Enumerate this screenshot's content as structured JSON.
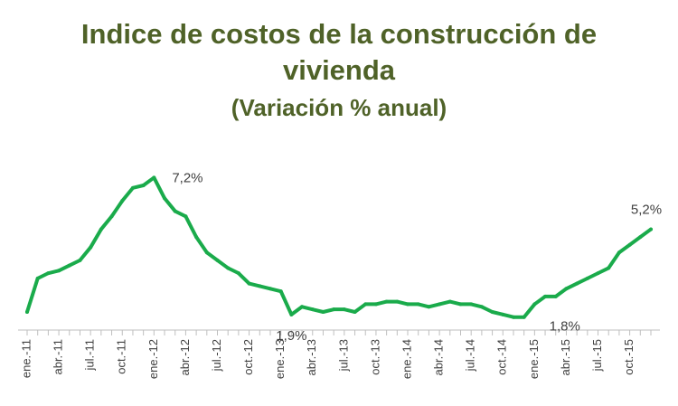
{
  "chart_data": {
    "type": "line",
    "title": "Indice de costos de la construcción de vivienda",
    "subtitle": "(Variación % anual)",
    "xlabel": "",
    "ylabel": "",
    "ylim": [
      1.3,
      7.6
    ],
    "grid": false,
    "colors": {
      "line": "#1aab4b",
      "axis": "#bfbfbf",
      "title": "#4f6228"
    },
    "x": [
      "ene.-11",
      "feb.-11",
      "mar.-11",
      "abr.-11",
      "may.-11",
      "jun.-11",
      "jul.-11",
      "ago.-11",
      "sep.-11",
      "oct.-11",
      "nov.-11",
      "dic.-11",
      "ene.-12",
      "feb.-12",
      "mar.-12",
      "abr.-12",
      "may.-12",
      "jun.-12",
      "jul.-12",
      "ago.-12",
      "sep.-12",
      "oct.-12",
      "nov.-12",
      "dic.-12",
      "ene.-13",
      "feb.-13",
      "mar.-13",
      "abr.-13",
      "may.-13",
      "jun.-13",
      "jul.-13",
      "ago.-13",
      "sep.-13",
      "oct.-13",
      "nov.-13",
      "dic.-13",
      "ene.-14",
      "feb.-14",
      "mar.-14",
      "abr.-14",
      "may.-14",
      "jun.-14",
      "jul.-14",
      "ago.-14",
      "sep.-14",
      "oct.-14",
      "nov.-14",
      "dic.-14",
      "ene.-15",
      "feb.-15",
      "mar.-15",
      "abr.-15",
      "may.-15",
      "jun.-15",
      "jul.-15",
      "ago.-15",
      "sep.-15",
      "oct.-15",
      "nov.-15",
      "dic.-15"
    ],
    "tick_labels": [
      "ene.-11",
      "abr.-11",
      "jul.-11",
      "oct.-11",
      "ene.-12",
      "abr.-12",
      "jul.-12",
      "oct.-12",
      "ene.-13",
      "abr.-13",
      "jul.-13",
      "oct.-13",
      "ene.-14",
      "abr.-14",
      "jul.-14",
      "oct.-14",
      "ene.-15",
      "abr.-15",
      "jul.-15",
      "oct.-15"
    ],
    "series": [
      {
        "values": [
          2.0,
          3.3,
          3.5,
          3.6,
          3.8,
          4.0,
          4.5,
          5.2,
          5.7,
          6.3,
          6.8,
          6.9,
          7.2,
          6.4,
          5.9,
          5.7,
          4.9,
          4.3,
          4.0,
          3.7,
          3.5,
          3.1,
          3.0,
          2.9,
          2.8,
          1.9,
          2.2,
          2.1,
          2.0,
          2.1,
          2.1,
          2.0,
          2.3,
          2.3,
          2.4,
          2.4,
          2.3,
          2.3,
          2.2,
          2.3,
          2.4,
          2.3,
          2.3,
          2.2,
          2.0,
          1.9,
          1.8,
          1.8,
          2.3,
          2.6,
          2.6,
          2.9,
          3.1,
          3.3,
          3.5,
          3.7,
          4.3,
          4.6,
          4.9,
          5.2
        ]
      }
    ],
    "annotations": [
      {
        "text": "7,2%",
        "x": "ene.-12"
      },
      {
        "text": "1,9%",
        "x": "feb.-13"
      },
      {
        "text": "1,8%",
        "x": "dic.-14"
      },
      {
        "text": "5,2%",
        "x": "dic.-15"
      }
    ]
  }
}
